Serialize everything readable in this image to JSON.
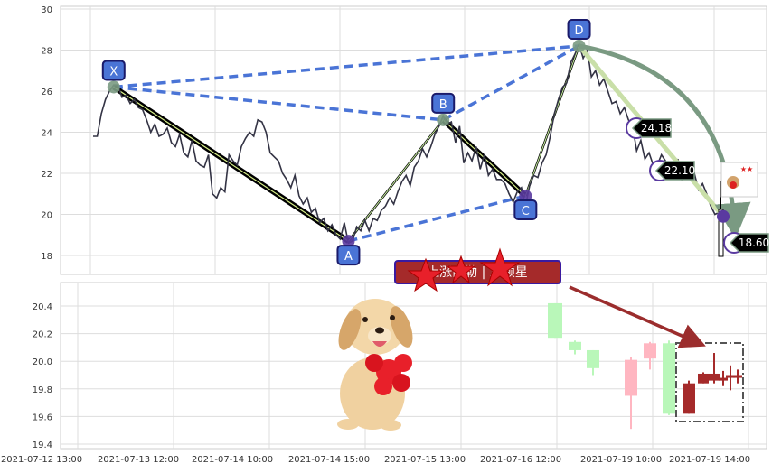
{
  "chart_data": [
    {
      "type": "line",
      "panel": "price",
      "ylim": [
        17,
        30
      ],
      "yticks": [
        18,
        20,
        22,
        24,
        26,
        28,
        30
      ],
      "grid": true,
      "series": [
        {
          "values": [
            23.8,
            23.8,
            24.9,
            25.6,
            26.0,
            26.3,
            26.3,
            25.7,
            25.8,
            25.4,
            25.6,
            25.2,
            25.1,
            24.6,
            24.0,
            24.4,
            23.8,
            23.9,
            24.2,
            23.5,
            23.3,
            23.9,
            23.0,
            22.8,
            23.6,
            22.6,
            22.4,
            22.3,
            22.9,
            21.0,
            20.8,
            21.3,
            21.1,
            22.9,
            22.6,
            22.4,
            23.3,
            23.7,
            24.0,
            23.8,
            24.6,
            24.5,
            24.0,
            23.0,
            22.8,
            22.6,
            22.0,
            21.7,
            21.3,
            21.9,
            20.9,
            20.5,
            20.8,
            20.1,
            20.3,
            19.6,
            19.8,
            19.2,
            19.5,
            19.0,
            18.8,
            19.6,
            18.6,
            18.7,
            19.4,
            19.2,
            19.7,
            19.2,
            19.8,
            19.7,
            20.2,
            20.4,
            20.8,
            20.5,
            21.1,
            21.6,
            21.9,
            21.4,
            22.3,
            22.6,
            23.2,
            22.8,
            23.3,
            23.9,
            24.3,
            24.8,
            24.4,
            24.5,
            23.5,
            24.3,
            22.5,
            23.0,
            22.6,
            23.3,
            22.2,
            22.9,
            21.9,
            22.2,
            21.7,
            21.7,
            21.5,
            21.0,
            20.6,
            21.1,
            21.3,
            20.4,
            21.4,
            21.9,
            21.8,
            22.5,
            22.9,
            23.8,
            24.9,
            25.6,
            26.2,
            26.4,
            27.4,
            27.8,
            28.3,
            27.6,
            28.0,
            26.7,
            27.0,
            26.3,
            26.6,
            26.0,
            25.4,
            25.5,
            24.9,
            25.2,
            24.6,
            24.3,
            23.1,
            23.6,
            22.7,
            23.0,
            22.4,
            22.4,
            22.9,
            22.6,
            22.1,
            22.0,
            22.7,
            21.7,
            21.8,
            21.8,
            22.0,
            21.2,
            21.5,
            21.0,
            20.4,
            20.0,
            20.1,
            19.9
          ]
        }
      ],
      "pattern_points": [
        {
          "label": "X",
          "value": 26.2
        },
        {
          "label": "A",
          "value": 18.7
        },
        {
          "label": "B",
          "value": 24.6
        },
        {
          "label": "C",
          "value": 20.9
        },
        {
          "label": "D",
          "value": 28.2
        }
      ],
      "price_labels": [
        "24.18",
        "22.10",
        "18.60"
      ],
      "sticker_text": "★★"
    },
    {
      "type": "candlestick",
      "panel": "zoom",
      "ylim": [
        19.37,
        20.6
      ],
      "yticks": [
        19.4,
        19.6,
        19.8,
        20.0,
        20.2,
        20.4
      ],
      "grid": true,
      "xlabels": [
        "2021-07-12 13:00",
        "2021-07-13 12:00",
        "2021-07-14 10:00",
        "2021-07-14 15:00",
        "2021-07-15 13:00",
        "2021-07-16 12:00",
        "2021-07-19 10:00",
        "2021-07-19 14:00"
      ],
      "candles": [
        {
          "open": 20.42,
          "high": 20.42,
          "low": 20.17,
          "close": 20.17,
          "color": "#b9f7b9"
        },
        {
          "open": 20.14,
          "high": 20.15,
          "low": 20.05,
          "close": 20.08,
          "color": "#b9f7b9"
        },
        {
          "open": 20.08,
          "high": 20.08,
          "low": 19.9,
          "close": 19.95,
          "color": "#b9f7b9"
        },
        {
          "open": 19.75,
          "high": 20.03,
          "low": 19.51,
          "close": 20.01,
          "color": "#ffb6c1"
        },
        {
          "open": 20.02,
          "high": 20.14,
          "low": 19.94,
          "close": 20.13,
          "color": "#ffb6c1"
        },
        {
          "open": 20.13,
          "high": 20.15,
          "low": 19.61,
          "close": 19.62,
          "color": "#b9f7b9"
        },
        {
          "open": 19.62,
          "high": 19.86,
          "low": 19.62,
          "close": 19.84,
          "color": "#a52a2a"
        },
        {
          "open": 19.84,
          "high": 19.92,
          "low": 19.84,
          "close": 19.91,
          "color": "#a52a2a"
        },
        {
          "open": 19.91,
          "high": 20.06,
          "low": 19.84,
          "close": 19.86,
          "color": "#a52a2a"
        },
        {
          "open": 19.86,
          "high": 19.93,
          "low": 19.82,
          "close": 19.88,
          "color": "#a52a2a"
        },
        {
          "open": 19.88,
          "high": 19.97,
          "low": 19.79,
          "close": 19.9,
          "color": "#a52a2a"
        },
        {
          "open": 19.9,
          "high": 19.94,
          "low": 19.84,
          "close": 19.88,
          "color": "#a52a2a"
        }
      ],
      "annotation": "上涨西勒   |   三颗星"
    }
  ]
}
